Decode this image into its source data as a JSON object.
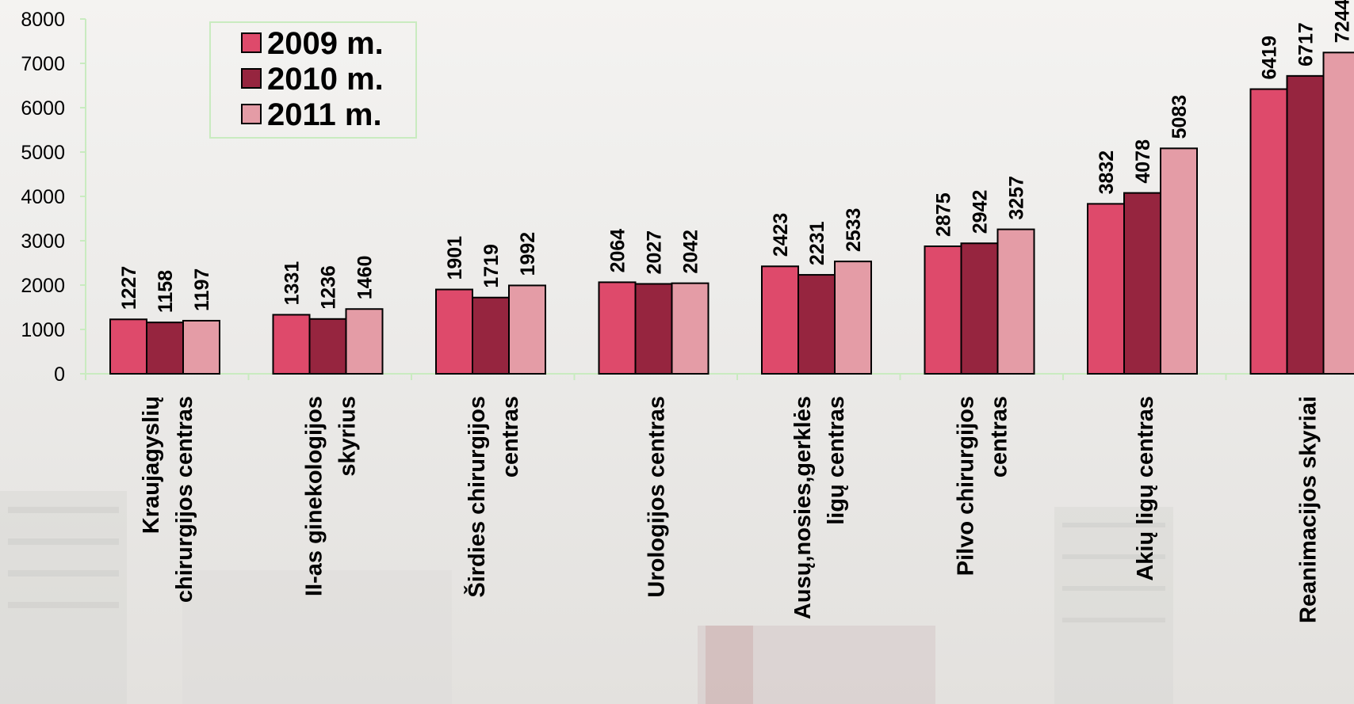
{
  "chart_data": {
    "type": "bar",
    "categories": [
      [
        "Kraujagyslių",
        "chirurgijos centras"
      ],
      [
        "II-as ginekologijos",
        "skyrius"
      ],
      [
        "Širdies chirurgijos",
        "centras"
      ],
      [
        "Urologijos centras"
      ],
      [
        "Ausų,nosies,gerklės",
        "ligų centras"
      ],
      [
        "Pilvo chirurgijos",
        "centras"
      ],
      [
        "Akių ligų centras"
      ],
      [
        "Reanimacijos skyriai"
      ]
    ],
    "series": [
      {
        "name": "2009 m.",
        "color": "#de4a6b",
        "values": [
          1227,
          1331,
          1901,
          2064,
          2423,
          2875,
          3832,
          6419
        ]
      },
      {
        "name": "2010 m.",
        "color": "#96253f",
        "values": [
          1158,
          1236,
          1719,
          2027,
          2231,
          2942,
          4078,
          6717
        ]
      },
      {
        "name": "2011 m.",
        "color": "#e49ca6",
        "values": [
          1197,
          1460,
          1992,
          2042,
          2533,
          3257,
          5083,
          7244
        ]
      }
    ],
    "yticks": [
      "0",
      "1000",
      "2000",
      "3000",
      "4000",
      "5000",
      "6000",
      "7000",
      "8000"
    ],
    "ylim": [
      0,
      8000
    ],
    "legend_position": "top-left",
    "grid": false,
    "axis_color": "#c9ebc0"
  }
}
